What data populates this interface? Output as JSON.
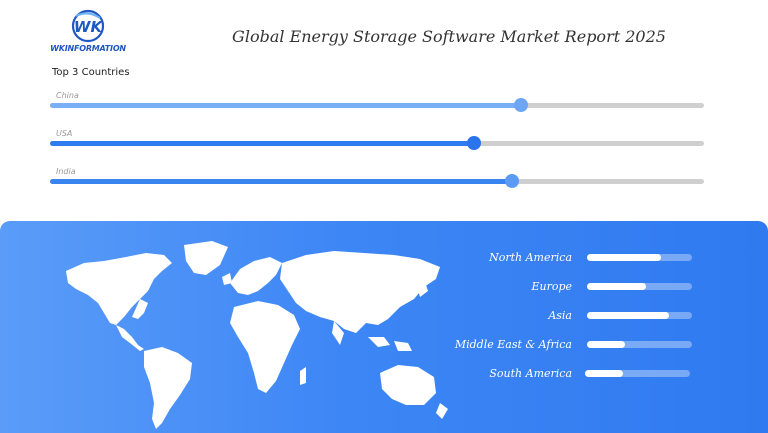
{
  "brand": {
    "logo_text": "WKINFORMATION",
    "logo_mark": "WK",
    "color": "#1f57c3"
  },
  "title": "Global Energy Storage Software Market Report 2025",
  "top_countries": {
    "heading": "Top 3 Countries",
    "items": [
      {
        "label": "China",
        "value": 0.72,
        "fill": "#7aaef6",
        "knob": "#6ea6f5"
      },
      {
        "label": "USA",
        "value": 0.648,
        "fill": "#2f7cf0",
        "knob": "#2a74ee"
      },
      {
        "label": "India",
        "value": 0.706,
        "fill": "#3a84f2",
        "knob": "#5b9bf6"
      }
    ]
  },
  "regions": {
    "background": "#3d86f5",
    "items": [
      {
        "label": "North America",
        "value": 0.7
      },
      {
        "label": "Europe",
        "value": 0.56
      },
      {
        "label": "Asia",
        "value": 0.78
      },
      {
        "label": "Middle East & Africa",
        "value": 0.36
      },
      {
        "label": "South America",
        "value": 0.36
      }
    ]
  },
  "chart_data": [
    {
      "type": "bar",
      "title": "Top 3 Countries",
      "categories": [
        "China",
        "USA",
        "India"
      ],
      "values": [
        0.72,
        0.648,
        0.706
      ],
      "ylim": [
        0,
        1
      ]
    },
    {
      "type": "bar",
      "categories": [
        "North America",
        "Europe",
        "Asia",
        "Middle East & Africa",
        "South America"
      ],
      "values": [
        0.7,
        0.56,
        0.78,
        0.36,
        0.36
      ],
      "ylim": [
        0,
        1
      ]
    }
  ]
}
